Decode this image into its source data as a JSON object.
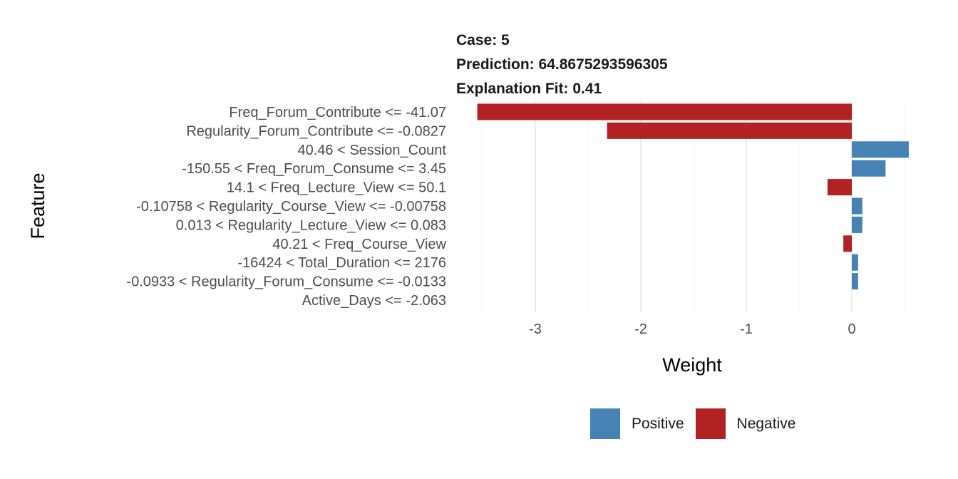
{
  "header": {
    "case": "Case: 5",
    "prediction": "Prediction: 64.8675293596305",
    "explanation_fit": "Explanation Fit: 0.41"
  },
  "chart_data": {
    "type": "bar",
    "orientation": "horizontal",
    "xlabel": "Weight",
    "ylabel": "Feature",
    "xlim": [
      -3.6,
      0.6
    ],
    "x_ticks": [
      -3,
      -2,
      -1,
      0
    ],
    "x_tick_labels": [
      "-3",
      "-2",
      "-1",
      "0"
    ],
    "grid": true,
    "legend_position": "bottom",
    "colors": {
      "Positive": "#4682B4",
      "Negative": "#B22222"
    },
    "categories": [
      "Freq_Forum_Contribute <= -41.07",
      "Regularity_Forum_Contribute <= -0.0827",
      "40.46 < Session_Count",
      "-150.55 < Freq_Forum_Consume <= 3.45",
      "14.1 < Freq_Lecture_View <= 50.1",
      "-0.10758 < Regularity_Course_View <= -0.00758",
      "0.013 < Regularity_Lecture_View <= 0.083",
      "40.21 < Freq_Course_View",
      "-16424 < Total_Duration <= 2176",
      "-0.0933 < Regularity_Forum_Consume <= -0.0133",
      "Active_Days <= -2.063"
    ],
    "values": [
      -3.55,
      -2.32,
      0.54,
      0.32,
      -0.23,
      0.1,
      0.1,
      -0.08,
      0.06,
      0.06,
      0
    ],
    "legend": [
      {
        "label": "Positive",
        "color": "#4682B4"
      },
      {
        "label": "Negative",
        "color": "#B22222"
      }
    ]
  }
}
